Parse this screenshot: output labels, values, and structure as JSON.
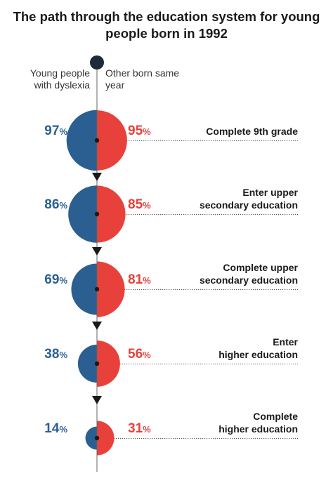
{
  "title": "The path through the education system for young people born in 1992",
  "legend": {
    "left": "Young people with dyslexia",
    "right": "Other born same year"
  },
  "colors": {
    "dyslexia": "#2b5f91",
    "other": "#e8413b",
    "line": "#1a1a1a",
    "start_dot": "#1d2a3a"
  },
  "stages": [
    {
      "label_lines": [
        "Complete 9th grade"
      ],
      "dyslexia_pct": 97,
      "other_pct": 95,
      "dyslexia_text": "97",
      "other_text": "95"
    },
    {
      "label_lines": [
        "Enter upper",
        "secondary education"
      ],
      "dyslexia_pct": 86,
      "other_pct": 85,
      "dyslexia_text": "86",
      "other_text": "85"
    },
    {
      "label_lines": [
        "Complete upper",
        "secondary education"
      ],
      "dyslexia_pct": 69,
      "other_pct": 81,
      "dyslexia_text": "69",
      "other_text": "81"
    },
    {
      "label_lines": [
        "Enter",
        "higher education"
      ],
      "dyslexia_pct": 38,
      "other_pct": 56,
      "dyslexia_text": "38",
      "other_text": "56"
    },
    {
      "label_lines": [
        "Complete",
        "higher education"
      ],
      "dyslexia_pct": 14,
      "other_pct": 31,
      "dyslexia_text": "14",
      "other_text": "31"
    }
  ],
  "percent_sign": "%"
}
